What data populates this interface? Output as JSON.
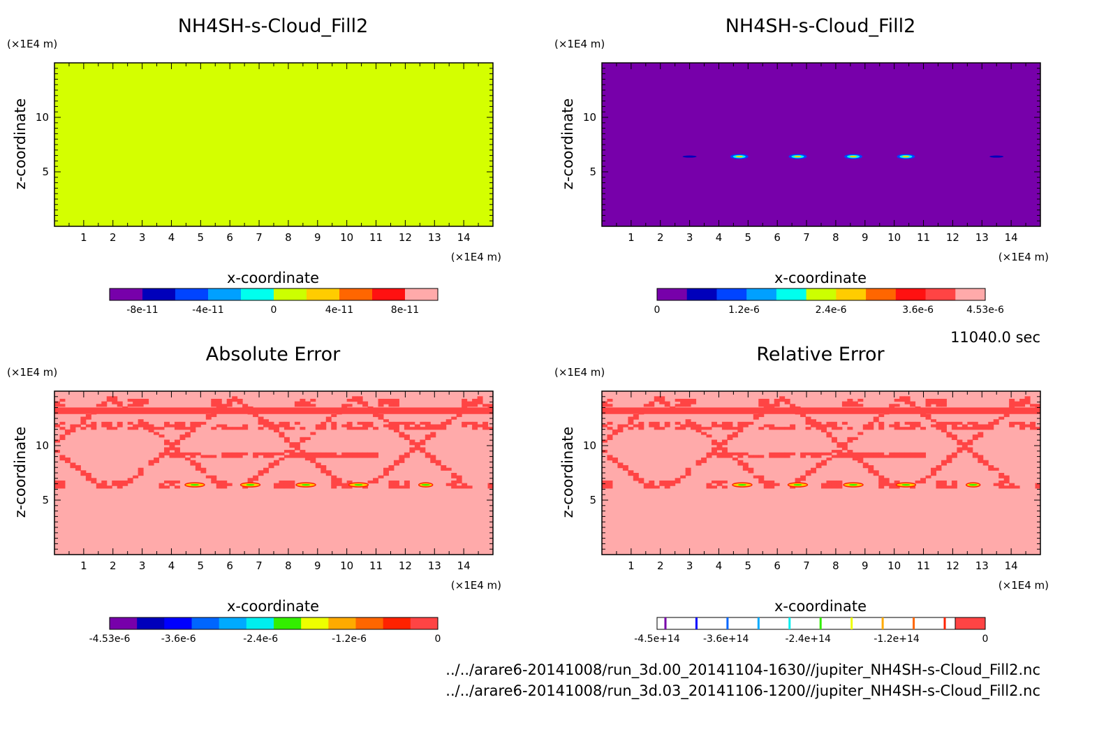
{
  "time_label": "11040.0 sec",
  "files": [
    "../../arare6-20141008/run_3d.00_20141104-1630//jupiter_NH4SH-s-Cloud_Fill2.nc",
    "../../arare6-20141008/run_3d.03_20141106-1200//jupiter_NH4SH-s-Cloud_Fill2.nc"
  ],
  "chart_data": [
    {
      "type": "heatmap",
      "title": "NH4SH-s-Cloud_Fill2",
      "xlabel": "x-coordinate",
      "ylabel": "z-coordinate",
      "xunit": "(×1E4 m)",
      "yunit": "(×1E4 m)",
      "xticks": [
        "1",
        "2",
        "3",
        "4",
        "5",
        "6",
        "7",
        "8",
        "9",
        "10",
        "11",
        "12",
        "13",
        "14"
      ],
      "yticks": [
        "5",
        "10"
      ],
      "xlim": [
        0,
        15
      ],
      "ylim": [
        0,
        15
      ],
      "field": "uniform",
      "field_value": 0,
      "colorbar": {
        "colors": [
          "#7700aa",
          "#0000bb",
          "#0044ff",
          "#00a0ff",
          "#00ffee",
          "#ccff00",
          "#ffcc00",
          "#ff6600",
          "#ff1111",
          "#ffaaaa"
        ],
        "tick_labels": [
          "-8e-11",
          "-4e-11",
          "0",
          "4e-11",
          "8e-11"
        ]
      }
    },
    {
      "type": "heatmap",
      "title": "NH4SH-s-Cloud_Fill2",
      "xlabel": "x-coordinate",
      "ylabel": "z-coordinate",
      "xunit": "(×1E4 m)",
      "yunit": "(×1E4 m)",
      "xticks": [
        "1",
        "2",
        "3",
        "4",
        "5",
        "6",
        "7",
        "8",
        "9",
        "10",
        "11",
        "12",
        "13",
        "14"
      ],
      "yticks": [
        "5",
        "10"
      ],
      "xlim": [
        0,
        15
      ],
      "ylim": [
        0,
        15
      ],
      "field": "background_with_blobs",
      "blobs_x": [
        2.1,
        4.7,
        6.7,
        8.6,
        10.4,
        12.6
      ],
      "blobs_z": 6.4,
      "colorbar": {
        "colors": [
          "#7700aa",
          "#0000bb",
          "#0044ff",
          "#00a0ff",
          "#00ffee",
          "#ccff00",
          "#ffcc00",
          "#ff6600",
          "#ff1111",
          "#ff4444",
          "#ffaaaa"
        ],
        "tick_labels": [
          "0",
          "1.2e-6",
          "2.4e-6",
          "3.6e-6",
          "4.53e-6"
        ]
      }
    },
    {
      "type": "heatmap",
      "title": "Absolute Error",
      "xlabel": "x-coordinate",
      "ylabel": "z-coordinate",
      "xunit": "(×1E4 m)",
      "yunit": "(×1E4 m)",
      "xticks": [
        "1",
        "2",
        "3",
        "4",
        "5",
        "6",
        "7",
        "8",
        "9",
        "10",
        "11",
        "12",
        "13",
        "14"
      ],
      "yticks": [
        "5",
        "10"
      ],
      "xlim": [
        0,
        15
      ],
      "ylim": [
        0,
        15
      ],
      "field": "error_pattern",
      "colorbar": {
        "colors": [
          "#7700aa",
          "#0000bb",
          "#0000ff",
          "#0066ff",
          "#00aaff",
          "#00eeee",
          "#33ee00",
          "#eeff00",
          "#ffaa00",
          "#ff6600",
          "#ff2200",
          "#ff4444"
        ],
        "tick_labels": [
          "-4.53e-6",
          "-3.6e-6",
          "-2.4e-6",
          "-1.2e-6",
          "0"
        ]
      }
    },
    {
      "type": "heatmap",
      "title": "Relative Error",
      "xlabel": "x-coordinate",
      "ylabel": "z-coordinate",
      "xunit": "(×1E4 m)",
      "yunit": "(×1E4 m)",
      "xticks": [
        "1",
        "2",
        "3",
        "4",
        "5",
        "6",
        "7",
        "8",
        "9",
        "10",
        "11",
        "12",
        "13",
        "14"
      ],
      "yticks": [
        "5",
        "10"
      ],
      "xlim": [
        0,
        15
      ],
      "ylim": [
        0,
        15
      ],
      "field": "error_pattern",
      "colorbar": {
        "style": "lines",
        "line_colors": [
          "#7700aa",
          "#0000ff",
          "#0066ff",
          "#00aaff",
          "#00eeee",
          "#33ee00",
          "#eeff00",
          "#ffaa00",
          "#ff6600",
          "#ff2200"
        ],
        "end_color": "#ff4444",
        "tick_labels": [
          "-4.5e+14",
          "-3.6e+14",
          "-2.4e+14",
          "-1.2e+14",
          "0"
        ]
      }
    }
  ]
}
